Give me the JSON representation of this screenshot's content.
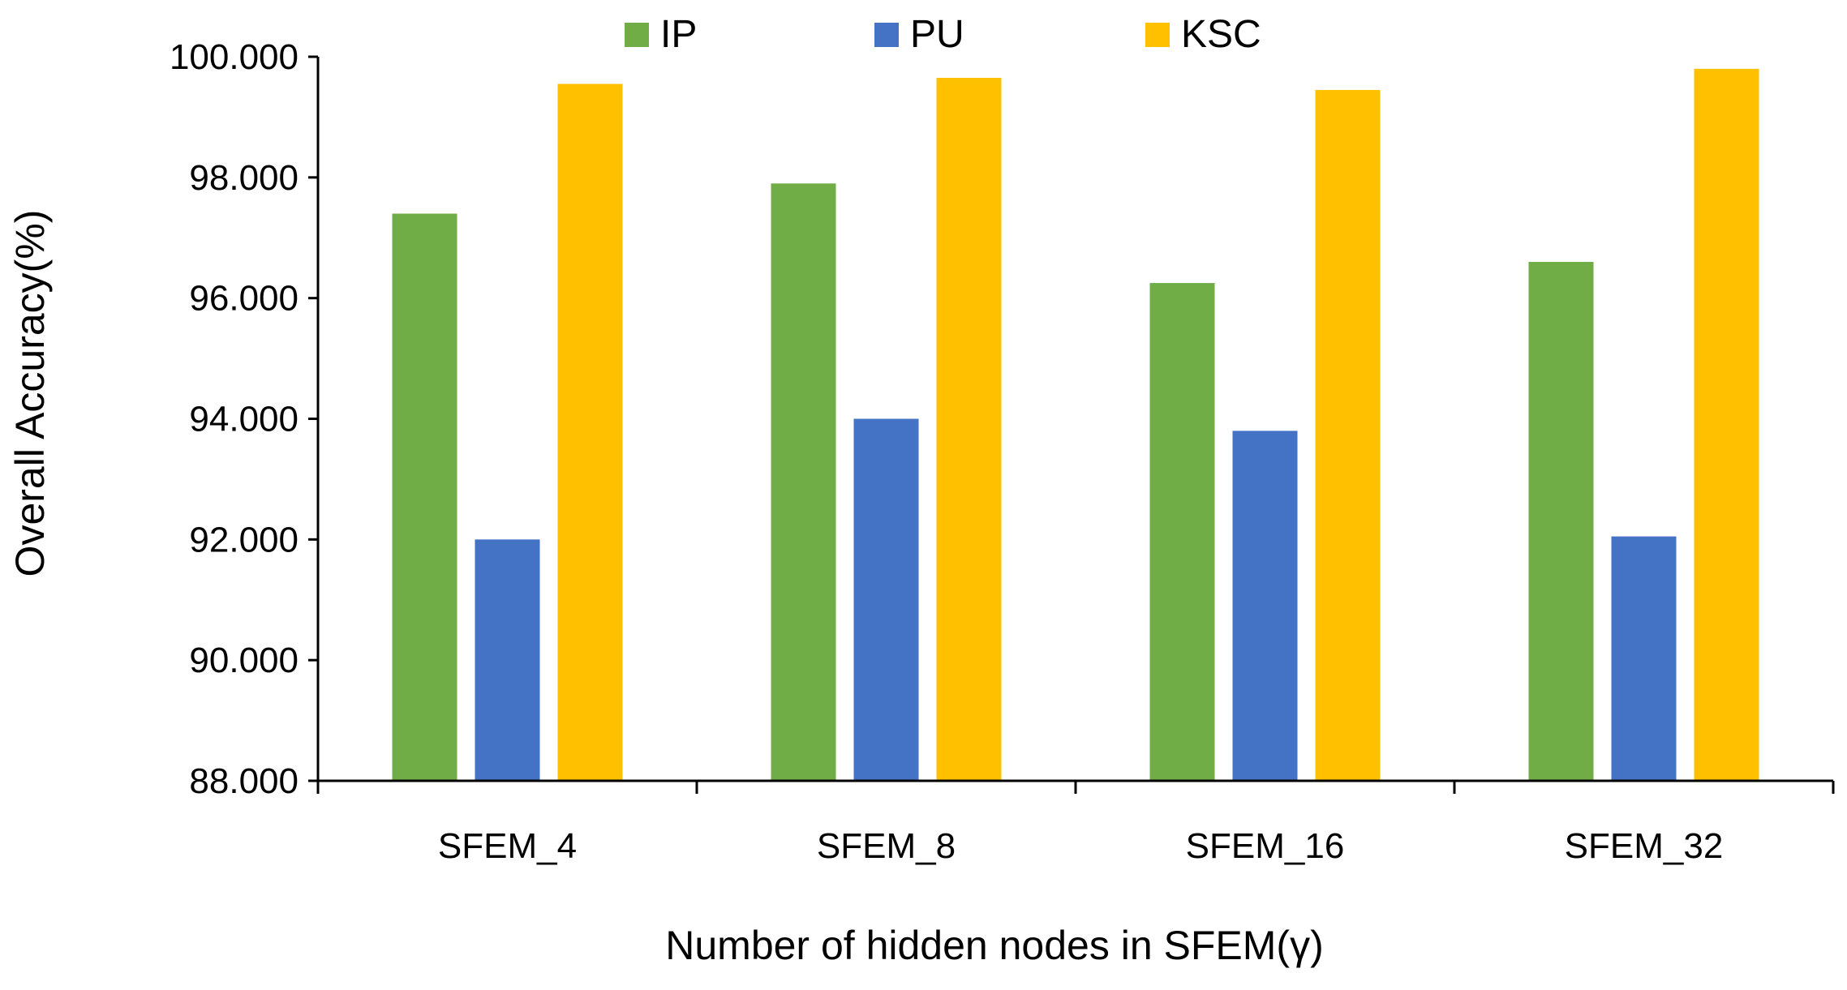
{
  "chart_data": {
    "type": "bar",
    "title": "",
    "xlabel": "Number of hidden nodes in SFEM(γ)",
    "ylabel": "Overall Accuracy(%)",
    "categories": [
      "SFEM_4",
      "SFEM_8",
      "SFEM_16",
      "SFEM_32"
    ],
    "series": [
      {
        "name": "IP",
        "color": "#70AD47",
        "values": [
          97.4,
          97.9,
          96.25,
          96.6
        ]
      },
      {
        "name": "PU",
        "color": "#4472C4",
        "values": [
          92.0,
          94.0,
          93.8,
          92.05
        ]
      },
      {
        "name": "KSC",
        "color": "#FFC000",
        "values": [
          99.55,
          99.65,
          99.45,
          99.8
        ]
      }
    ],
    "ylim": [
      88,
      100
    ],
    "yticks": [
      88,
      90,
      92,
      94,
      96,
      98,
      100
    ],
    "ytick_labels": [
      "88.000",
      "90.000",
      "92.000",
      "94.000",
      "96.000",
      "98.000",
      "100.000"
    ],
    "grid": false,
    "legend_position": "top-center"
  }
}
